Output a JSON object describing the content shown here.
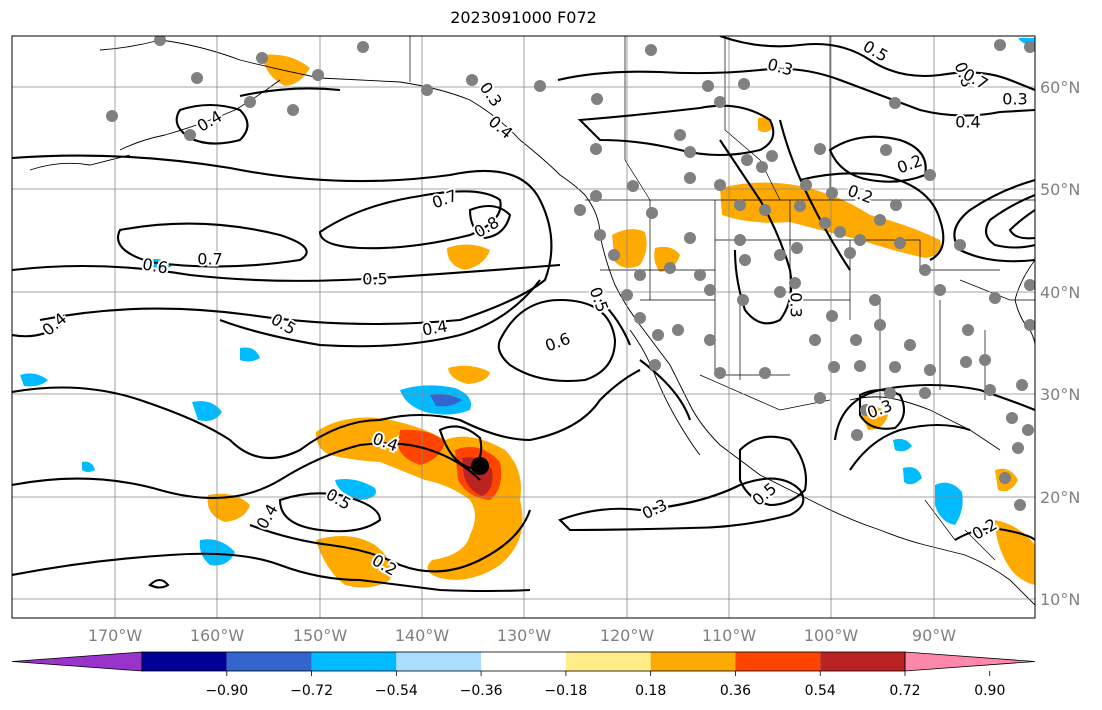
{
  "title": "2023091000 F072",
  "map": {
    "lon_labels": [
      "170°W",
      "160°W",
      "150°W",
      "140°W",
      "130°W",
      "120°W",
      "110°W",
      "100°W",
      "90°W"
    ],
    "lat_labels": [
      "10°N",
      "20°N",
      "30°N",
      "40°N",
      "50°N",
      "60°N"
    ],
    "contour_labels": [
      "0.3",
      "0.3",
      "0.4",
      "0.4",
      "0.7",
      "0.8",
      "0.7",
      "0.6",
      "0.5",
      "0.4",
      "0.5",
      "0.4",
      "0.6",
      "0.5",
      "0.3",
      "0.4",
      "0.5",
      "0.4",
      "0.2",
      "0.3",
      "0.5",
      "0.3",
      "0.2",
      "0.2",
      "0.5",
      "0.3",
      "0.8",
      "0.7",
      "0.4",
      "0.2"
    ],
    "station_marker_color": "#808080",
    "storm_center_color": "#000000"
  },
  "colorbar": {
    "colors": [
      "#9933cc",
      "#000099",
      "#3366cc",
      "#00bbff",
      "#aaddff",
      "#ffffff",
      "#ffee88",
      "#ffaa00",
      "#ff4400",
      "#bb2222",
      "#ff88aa"
    ],
    "tick_labels": [
      "−0.90",
      "−0.72",
      "−0.54",
      "−0.36",
      "−0.18",
      "0.18",
      "0.36",
      "0.54",
      "0.72",
      "0.90"
    ]
  }
}
